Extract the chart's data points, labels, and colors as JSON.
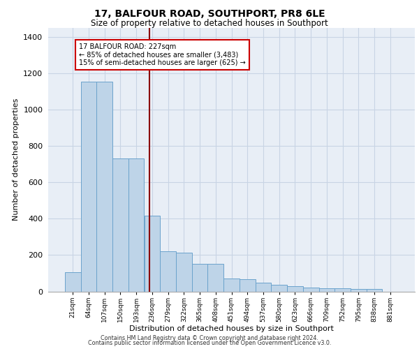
{
  "title_line1": "17, BALFOUR ROAD, SOUTHPORT, PR8 6LE",
  "title_line2": "Size of property relative to detached houses in Southport",
  "xlabel": "Distribution of detached houses by size in Southport",
  "ylabel": "Number of detached properties",
  "footer_line1": "Contains HM Land Registry data © Crown copyright and database right 2024.",
  "footer_line2": "Contains public sector information licensed under the Open Government Licence v3.0.",
  "categories": [
    "21sqm",
    "64sqm",
    "107sqm",
    "150sqm",
    "193sqm",
    "236sqm",
    "279sqm",
    "322sqm",
    "365sqm",
    "408sqm",
    "451sqm",
    "494sqm",
    "537sqm",
    "580sqm",
    "623sqm",
    "666sqm",
    "709sqm",
    "752sqm",
    "795sqm",
    "838sqm",
    "881sqm"
  ],
  "values": [
    105,
    1155,
    1155,
    730,
    730,
    415,
    220,
    215,
    150,
    150,
    70,
    68,
    47,
    35,
    28,
    20,
    17,
    16,
    14,
    13,
    0
  ],
  "bar_color": "#bed4e8",
  "bar_edge_color": "#6ba3cc",
  "grid_color": "#c8d4e4",
  "background_color": "#e8eef6",
  "vline_x": 4.82,
  "vline_color": "#8b0000",
  "annotation_text": "17 BALFOUR ROAD: 227sqm\n← 85% of detached houses are smaller (3,483)\n15% of semi-detached houses are larger (625) →",
  "annotation_box_color": "#ffffff",
  "annotation_box_edge": "#cc0000",
  "ylim": [
    0,
    1450
  ],
  "yticks": [
    0,
    200,
    400,
    600,
    800,
    1000,
    1200,
    1400
  ],
  "fig_width": 6.0,
  "fig_height": 5.0,
  "dpi": 100
}
